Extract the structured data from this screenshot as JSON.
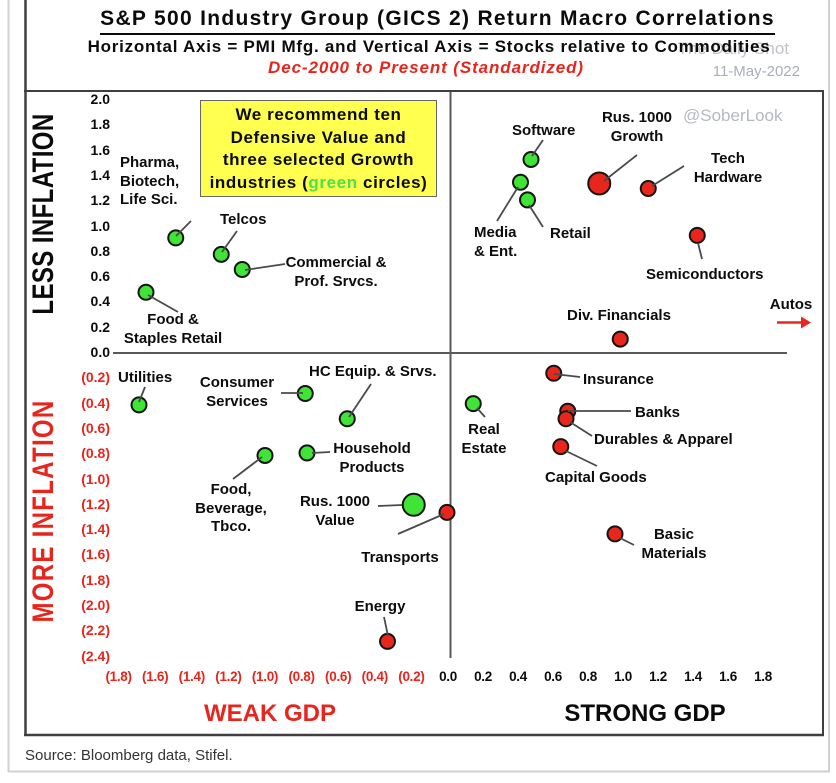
{
  "header": {
    "title": "S&P 500 Industry Group (GICS 2) Return Macro Correlations",
    "subtitle": "Horizontal Axis = PMI Mfg. and Vertical Axis = Stocks relative to Commodities",
    "period": "Dec-2000 to Present (Standardized)"
  },
  "watermarks": {
    "site": "The Daily Shot",
    "date": "11-May-2022",
    "handle": "@SoberLook"
  },
  "annotation": {
    "line1": "We recommend ten",
    "line2": "Defensive Value and",
    "line3": "three selected Growth",
    "line4_pre": "industries (",
    "line4_green": "green",
    "line4_post": " circles)"
  },
  "axes": {
    "left_top_label": "LESS INFLATION",
    "left_bottom_label": "MORE INFLATION",
    "bottom_left_label": "WEAK GDP",
    "bottom_right_label": "STRONG GDP",
    "y_ticks": [
      "2.0",
      "1.8",
      "1.6",
      "1.4",
      "1.2",
      "1.0",
      "0.8",
      "0.6",
      "0.4",
      "0.2",
      "0.0",
      "(0.2)",
      "(0.4)",
      "(0.6)",
      "(0.8)",
      "(1.0)",
      "(1.2)",
      "(1.4)",
      "(1.6)",
      "(1.8)",
      "(2.0)",
      "(2.2)",
      "(2.4)"
    ],
    "x_ticks": [
      "(1.8)",
      "(1.6)",
      "(1.4)",
      "(1.2)",
      "(1.0)",
      "(0.8)",
      "(0.6)",
      "(0.4)",
      "(0.2)",
      "0.0",
      "0.2",
      "0.4",
      "0.6",
      "0.8",
      "1.0",
      "1.2",
      "1.4",
      "1.6",
      "1.8"
    ]
  },
  "source": "Source: Bloomberg data, Stifel.",
  "colors": {
    "green_point": "#3fe436",
    "red_point": "#e9261b",
    "red_text": "#e8251c",
    "leader_line": "#4a4a4a",
    "frame": "#3f3f3f",
    "axis": "#5a5a5a",
    "outer_border": "#ccd1d5",
    "callout_bg": "#feff4f"
  },
  "chart_data": {
    "type": "scatter",
    "title": "S&P 500 Industry Group (GICS 2) Return Macro Correlations",
    "xlabel": "PMI Mfg.",
    "ylabel": "Stocks relative to Commodities",
    "x_range": [
      -1.8,
      1.8
    ],
    "y_range": [
      -2.4,
      2.0
    ],
    "tick_step": 0.2,
    "points": [
      {
        "id": "pharma",
        "label": "Pharma,\nBiotech,\nLife Sci.",
        "x": -1.57,
        "y": 0.91,
        "color": "green",
        "size": "normal"
      },
      {
        "id": "telcos",
        "label": "Telcos",
        "x": -1.31,
        "y": 0.78,
        "color": "green",
        "size": "normal"
      },
      {
        "id": "commprof",
        "label": "Commercial &\nProf. Srvcs.",
        "x": -1.19,
        "y": 0.66,
        "color": "green",
        "size": "normal"
      },
      {
        "id": "foodstaples",
        "label": "Food &\nStaples Retail",
        "x": -1.74,
        "y": 0.48,
        "color": "green",
        "size": "normal"
      },
      {
        "id": "utilities",
        "label": "Utilities",
        "x": -1.78,
        "y": -0.41,
        "color": "green",
        "size": "normal"
      },
      {
        "id": "consumersvcs",
        "label": "Consumer\nServices",
        "x": -0.83,
        "y": -0.32,
        "color": "green",
        "size": "normal"
      },
      {
        "id": "hcequip",
        "label": "HC Equip. & Srvs.",
        "x": -0.59,
        "y": -0.52,
        "color": "green",
        "size": "normal"
      },
      {
        "id": "household",
        "label": "Household\nProducts",
        "x": -0.82,
        "y": -0.79,
        "color": "green",
        "size": "normal"
      },
      {
        "id": "foodbev",
        "label": "Food,\nBeverage,\nTbco.",
        "x": -1.06,
        "y": -0.81,
        "color": "green",
        "size": "normal"
      },
      {
        "id": "rusvalue",
        "label": "Rus. 1000\nValue",
        "x": -0.21,
        "y": -1.2,
        "color": "green",
        "size": "large"
      },
      {
        "id": "transports",
        "label": "Transports",
        "x": -0.02,
        "y": -1.26,
        "color": "red",
        "size": "normal"
      },
      {
        "id": "energy",
        "label": "Energy",
        "x": -0.36,
        "y": -2.28,
        "color": "red",
        "size": "normal"
      },
      {
        "id": "software",
        "label": "Software",
        "x": 0.46,
        "y": 1.53,
        "color": "green",
        "size": "normal"
      },
      {
        "id": "mediaent",
        "label": "Media\n& Ent.",
        "x": 0.4,
        "y": 1.35,
        "color": "green",
        "size": "normal"
      },
      {
        "id": "retail",
        "label": "Retail",
        "x": 0.44,
        "y": 1.21,
        "color": "green",
        "size": "normal"
      },
      {
        "id": "rusgrowth",
        "label": "Rus. 1000\nGrowth",
        "x": 0.85,
        "y": 1.34,
        "color": "red",
        "size": "large"
      },
      {
        "id": "techhw",
        "label": "Tech\nHardware",
        "x": 1.13,
        "y": 1.3,
        "color": "red",
        "size": "normal"
      },
      {
        "id": "semis",
        "label": "Semiconductors",
        "x": 1.41,
        "y": 0.93,
        "color": "red",
        "size": "normal"
      },
      {
        "id": "divfin",
        "label": "Div. Financials",
        "x": 0.97,
        "y": 0.11,
        "color": "red",
        "size": "normal"
      },
      {
        "id": "insurance",
        "label": "Insurance",
        "x": 0.59,
        "y": -0.16,
        "color": "red",
        "size": "normal"
      },
      {
        "id": "realestate",
        "label": "Real\nEstate",
        "x": 0.13,
        "y": -0.4,
        "color": "green",
        "size": "normal"
      },
      {
        "id": "banks",
        "label": "Banks",
        "x": 0.67,
        "y": -0.46,
        "color": "red",
        "size": "normal"
      },
      {
        "id": "durables",
        "label": "Durables & Apparel",
        "x": 0.66,
        "y": -0.52,
        "color": "red",
        "size": "normal"
      },
      {
        "id": "capgoods",
        "label": "Capital Goods",
        "x": 0.63,
        "y": -0.74,
        "color": "red",
        "size": "normal"
      },
      {
        "id": "basicmat",
        "label": "Basic\nMaterials",
        "x": 0.94,
        "y": -1.43,
        "color": "red",
        "size": "normal"
      },
      {
        "id": "autos",
        "label": "Autos",
        "x": 1.96,
        "y": 0.24,
        "color": "red",
        "size": "normal",
        "marker": "arrow"
      }
    ]
  }
}
